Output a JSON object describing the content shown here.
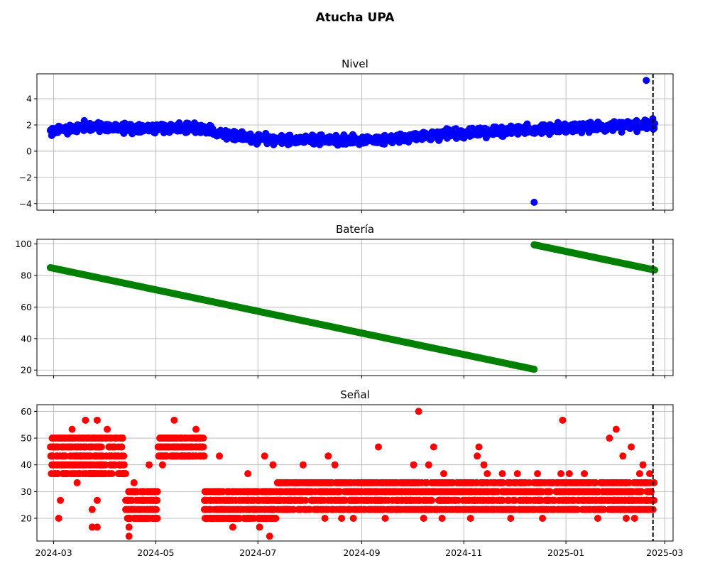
{
  "figure": {
    "title": "Atucha UPA"
  },
  "chart_data": {
    "type": "scatter",
    "x_range": [
      "2024-02-20",
      "2025-03-06"
    ],
    "x_ticks": [
      "2024-03",
      "2024-05",
      "2024-07",
      "2024-09",
      "2024-11",
      "2025-01",
      "2025-03"
    ],
    "x_tick_dates": [
      "2024-03-01",
      "2024-05-01",
      "2024-07-01",
      "2024-09-01",
      "2024-11-01",
      "2025-01-01",
      "2025-03-01"
    ],
    "vline_date": "2025-02-22",
    "grid": true,
    "legend": "none",
    "panels": [
      {
        "title": "Nivel",
        "color": "#0000ff",
        "ylim": [
          -4.5,
          5.9
        ],
        "yticks": [
          -4,
          -2,
          0,
          2,
          4
        ],
        "series": [
          {
            "x_start": "2024-02-28",
            "x_end": "2025-02-23",
            "y_trend": [
              [
                0,
                1.5
              ],
              [
                20,
                1.9
              ],
              [
                50,
                1.75
              ],
              [
                85,
                1.75
              ],
              [
                125,
                0.9
              ],
              [
                195,
                0.8
              ],
              [
                235,
                1.3
              ],
              [
                290,
                1.7
              ],
              [
                360,
                2.0
              ]
            ],
            "y_spread": 0.55,
            "count": 1300
          }
        ],
        "points": [
          {
            "x": "2024-12-13",
            "y": -3.9
          },
          {
            "x": "2025-02-18",
            "y": 5.4
          }
        ]
      },
      {
        "title": "Batería",
        "color": "#008000",
        "ylim": [
          16.5,
          103
        ],
        "yticks": [
          20,
          40,
          60,
          80,
          100
        ],
        "series": [
          {
            "x_start": "2024-02-28",
            "x_end": "2024-12-13",
            "y_start": 85,
            "y_end": 20.5,
            "count": 420
          },
          {
            "x_start": "2024-12-13",
            "x_end": "2025-02-23",
            "y_start": 99.5,
            "y_end": 83.5,
            "count": 130
          }
        ]
      },
      {
        "title": "Señal",
        "color": "#ff0000",
        "ylim": [
          11.5,
          62.5
        ],
        "yticks": [
          20,
          30,
          40,
          50,
          60
        ],
        "levels": [
          13.3,
          16.7,
          20,
          23.3,
          26.7,
          30,
          33.3,
          36.7,
          40,
          43.3,
          46.7,
          50,
          53.3,
          56.7,
          60
        ],
        "segments": [
          {
            "x_start": "2024-02-28",
            "x_end": "2024-04-13",
            "levels": [
              36.7,
              40,
              43.3,
              46.7,
              50
            ],
            "count": 340
          },
          {
            "x_start": "2024-04-13",
            "x_end": "2024-05-02",
            "levels": [
              20,
              23.3,
              26.7,
              30
            ],
            "count": 140
          },
          {
            "x_start": "2024-05-02",
            "x_end": "2024-05-30",
            "levels": [
              43.3,
              46.7,
              50
            ],
            "count": 160
          },
          {
            "x_start": "2024-05-30",
            "x_end": "2024-07-12",
            "levels": [
              20,
              23.3,
              26.7,
              30
            ],
            "count": 280
          },
          {
            "x_start": "2024-07-12",
            "x_end": "2025-02-23",
            "levels": [
              23.3,
              26.7,
              30,
              33.3
            ],
            "count": 1500
          }
        ],
        "points": [
          {
            "x": "2024-03-12",
            "y": 53.3
          },
          {
            "x": "2024-03-20",
            "y": 56.7
          },
          {
            "x": "2024-03-27",
            "y": 56.7
          },
          {
            "x": "2024-04-02",
            "y": 53.3
          },
          {
            "x": "2024-03-05",
            "y": 26.7
          },
          {
            "x": "2024-03-04",
            "y": 20
          },
          {
            "x": "2024-03-24",
            "y": 16.7
          },
          {
            "x": "2024-03-27",
            "y": 16.7
          },
          {
            "x": "2024-03-24",
            "y": 23.3
          },
          {
            "x": "2024-03-27",
            "y": 26.7
          },
          {
            "x": "2024-03-15",
            "y": 33.3
          },
          {
            "x": "2024-04-15",
            "y": 13.3
          },
          {
            "x": "2024-04-15",
            "y": 16.7
          },
          {
            "x": "2024-04-18",
            "y": 33.3
          },
          {
            "x": "2024-04-27",
            "y": 40
          },
          {
            "x": "2024-05-05",
            "y": 40
          },
          {
            "x": "2024-05-12",
            "y": 56.7
          },
          {
            "x": "2024-05-25",
            "y": 53.3
          },
          {
            "x": "2024-06-08",
            "y": 43.3
          },
          {
            "x": "2024-06-16",
            "y": 16.7
          },
          {
            "x": "2024-07-02",
            "y": 16.7
          },
          {
            "x": "2024-07-08",
            "y": 13.3
          },
          {
            "x": "2024-07-05",
            "y": 43.3
          },
          {
            "x": "2024-07-10",
            "y": 40
          },
          {
            "x": "2024-06-25",
            "y": 36.7
          },
          {
            "x": "2024-07-28",
            "y": 40
          },
          {
            "x": "2024-08-12",
            "y": 43.3
          },
          {
            "x": "2024-08-16",
            "y": 40
          },
          {
            "x": "2024-08-10",
            "y": 20
          },
          {
            "x": "2024-08-20",
            "y": 20
          },
          {
            "x": "2024-08-27",
            "y": 20
          },
          {
            "x": "2024-09-11",
            "y": 46.7
          },
          {
            "x": "2024-09-15",
            "y": 20
          },
          {
            "x": "2024-10-05",
            "y": 60
          },
          {
            "x": "2024-10-02",
            "y": 40
          },
          {
            "x": "2024-10-11",
            "y": 40
          },
          {
            "x": "2024-10-14",
            "y": 46.7
          },
          {
            "x": "2024-10-08",
            "y": 20
          },
          {
            "x": "2024-10-19",
            "y": 20
          },
          {
            "x": "2024-10-20",
            "y": 36.7
          },
          {
            "x": "2024-11-10",
            "y": 46.7
          },
          {
            "x": "2024-11-09",
            "y": 43.3
          },
          {
            "x": "2024-11-13",
            "y": 40
          },
          {
            "x": "2024-11-15",
            "y": 36.7
          },
          {
            "x": "2024-11-05",
            "y": 20
          },
          {
            "x": "2024-11-24",
            "y": 36.7
          },
          {
            "x": "2024-11-29",
            "y": 20
          },
          {
            "x": "2024-12-03",
            "y": 36.7
          },
          {
            "x": "2024-12-15",
            "y": 36.7
          },
          {
            "x": "2024-12-18",
            "y": 20
          },
          {
            "x": "2024-12-30",
            "y": 56.7
          },
          {
            "x": "2024-12-29",
            "y": 36.7
          },
          {
            "x": "2025-01-03",
            "y": 36.7
          },
          {
            "x": "2025-01-12",
            "y": 36.7
          },
          {
            "x": "2025-01-20",
            "y": 20
          },
          {
            "x": "2025-01-27",
            "y": 50
          },
          {
            "x": "2025-01-31",
            "y": 53.3
          },
          {
            "x": "2025-02-04",
            "y": 43.3
          },
          {
            "x": "2025-02-09",
            "y": 46.7
          },
          {
            "x": "2025-02-14",
            "y": 36.7
          },
          {
            "x": "2025-02-16",
            "y": 40
          },
          {
            "x": "2025-02-06",
            "y": 20
          },
          {
            "x": "2025-02-11",
            "y": 20
          },
          {
            "x": "2025-02-20",
            "y": 36.7
          }
        ]
      }
    ]
  }
}
